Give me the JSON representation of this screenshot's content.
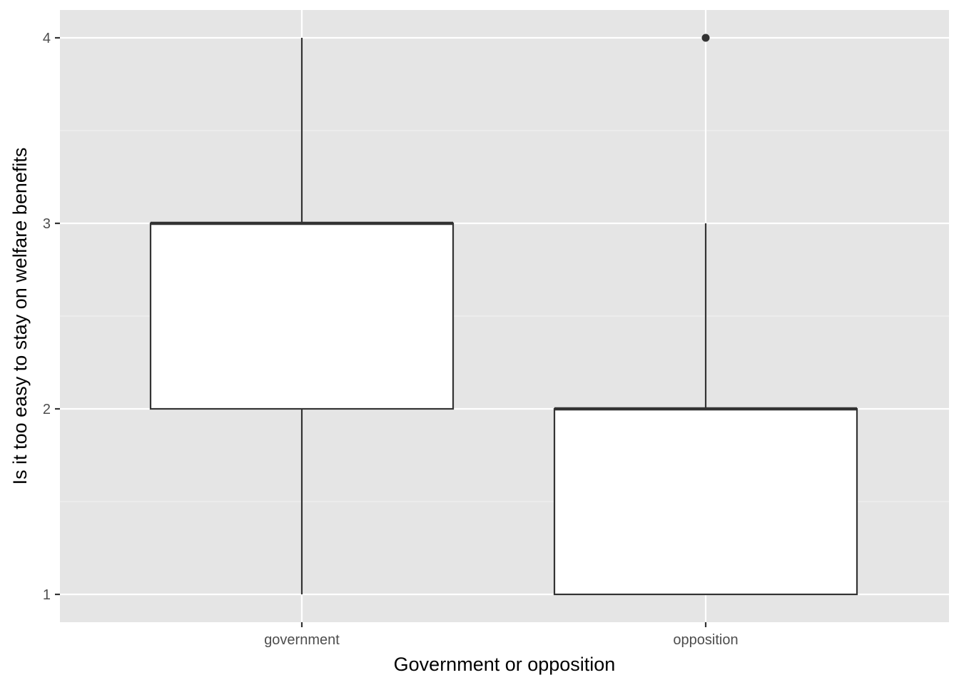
{
  "chart_data": {
    "type": "boxplot",
    "title": "",
    "xlabel": "Government or opposition",
    "ylabel": "Is it too easy to stay on welfare benefits",
    "categories": [
      "government",
      "opposition"
    ],
    "ylim": [
      0.85,
      4.15
    ],
    "y_ticks": [
      1,
      2,
      3,
      4
    ],
    "y_tick_labels": [
      "1",
      "2",
      "3",
      "4"
    ],
    "y_minor_ticks": [
      1.5,
      2.5,
      3.5
    ],
    "grid": true,
    "legend": "none",
    "boxes": [
      {
        "category": "government",
        "whisker_low": 1,
        "q1": 2,
        "median": 3,
        "q3": 3,
        "whisker_high": 4,
        "outliers": []
      },
      {
        "category": "opposition",
        "whisker_low": 1,
        "q1": 1,
        "median": 2,
        "q3": 2,
        "whisker_high": 3,
        "outliers": [
          4
        ]
      }
    ],
    "colors": {
      "panel_background": "#e5e5e5",
      "grid_major": "#ffffff",
      "grid_minor": "#f2f2f2",
      "box_fill": "#ffffff",
      "box_line": "#333333",
      "tick_text": "#4d4d4d",
      "tick_mark": "#333333",
      "title_text": "#000000"
    }
  }
}
